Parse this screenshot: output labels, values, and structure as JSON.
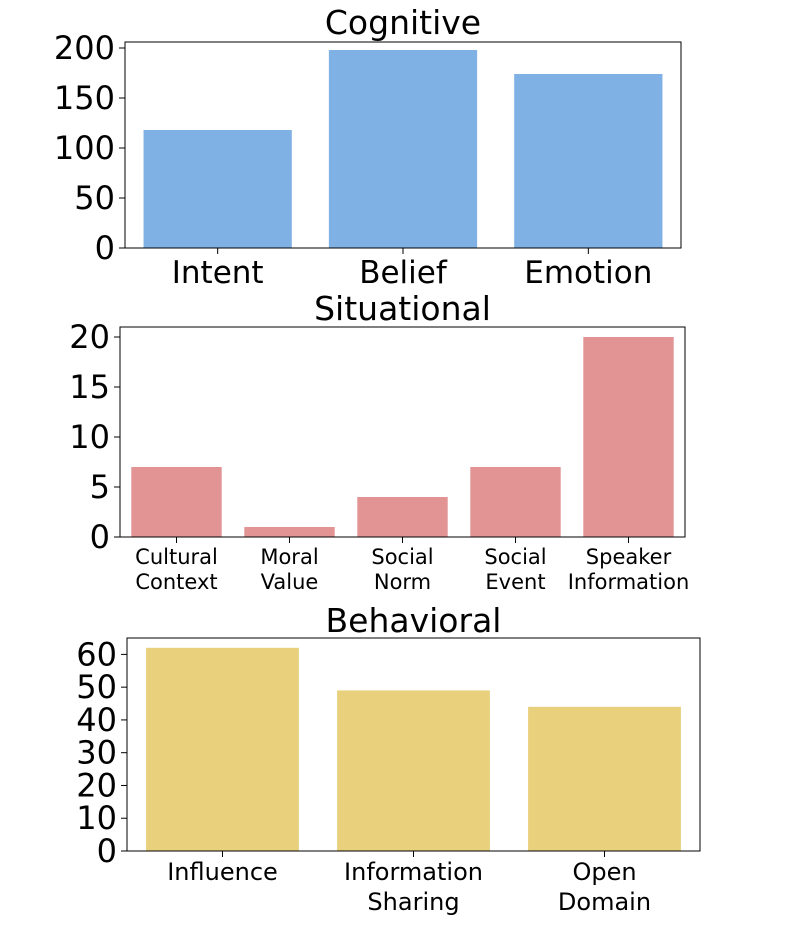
{
  "chart_data": [
    {
      "type": "bar",
      "title": "Cognitive",
      "categories": [
        "Intent",
        "Belief",
        "Emotion"
      ],
      "values": [
        118,
        198,
        174
      ],
      "ylim": [
        0,
        206
      ],
      "yticks": [
        0,
        50,
        100,
        150,
        200
      ],
      "xlabel": "",
      "ylabel": "",
      "color": "#7fb1e5",
      "grid": false
    },
    {
      "type": "bar",
      "title": "Situational",
      "categories": [
        [
          "Cultural",
          "Context"
        ],
        [
          "Moral",
          "Value"
        ],
        [
          "Social",
          "Norm"
        ],
        [
          "Social",
          "Event"
        ],
        [
          "Speaker",
          "Information"
        ]
      ],
      "values": [
        7,
        1,
        4,
        7,
        20
      ],
      "ylim": [
        0,
        21
      ],
      "yticks": [
        0,
        5,
        10,
        15,
        20
      ],
      "xlabel": "",
      "ylabel": "",
      "color": "#e29494",
      "grid": false
    },
    {
      "type": "bar",
      "title": "Behavioral",
      "categories": [
        "Influence",
        [
          "Information",
          "Sharing"
        ],
        [
          "Open",
          "Domain"
        ]
      ],
      "values": [
        62,
        49,
        44
      ],
      "ylim": [
        0,
        65
      ],
      "yticks": [
        0,
        10,
        20,
        30,
        40,
        50,
        60
      ],
      "xlabel": "",
      "ylabel": "",
      "color": "#e8d07c",
      "grid": false
    }
  ]
}
